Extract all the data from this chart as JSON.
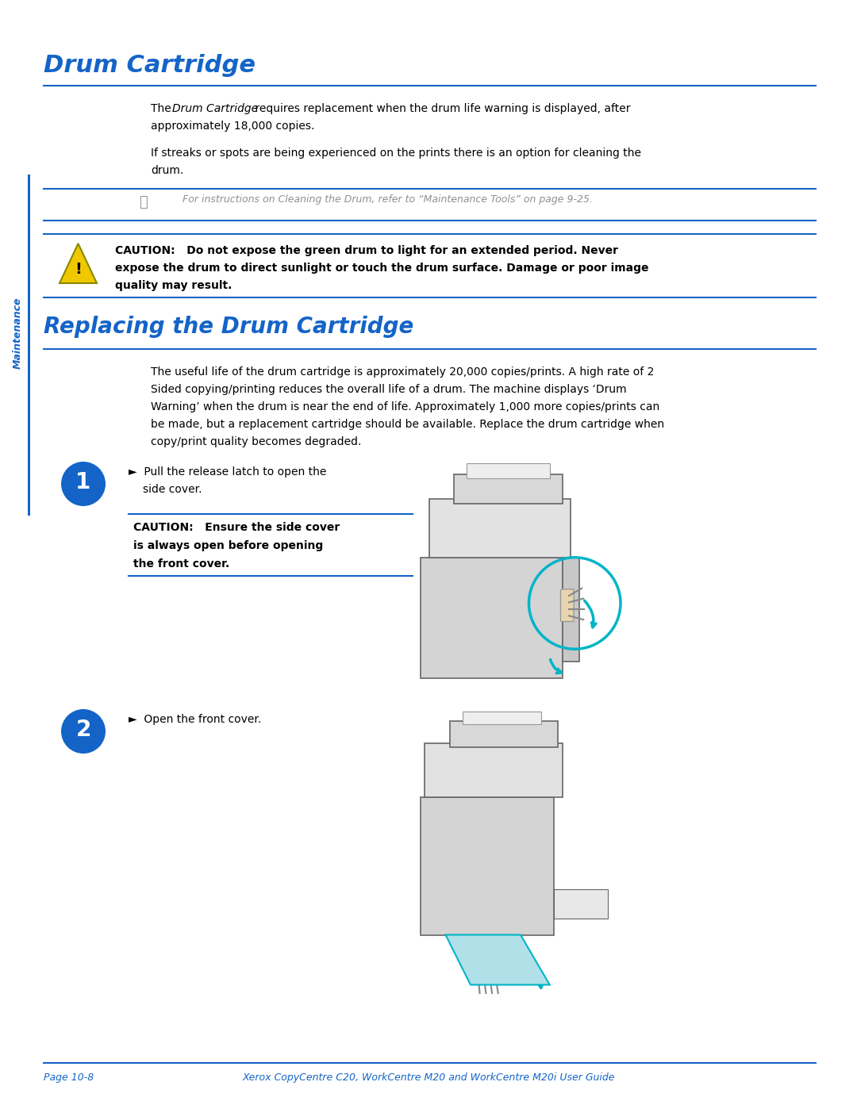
{
  "page_bg": "#ffffff",
  "blue_color": "#1464C8",
  "teal_color": "#00B4C8",
  "black_color": "#000000",
  "gray_text": "#909090",
  "yellow_caution": "#F0C800",
  "sidebar_text": "Maintenance",
  "h1_title": "Drum Cartridge",
  "h2_title": "Replacing the Drum Cartridge",
  "note_text": "For instructions on Cleaning the Drum, refer to “Maintenance Tools” on page 9-25.",
  "caution_text_bold": "CAUTION:   Do not expose the green drum to light for an extended period. Never\nexpose the drum to direct sunlight or touch the drum surface. Damage or poor image\nquality may result.",
  "body_text_3": "The useful life of the drum cartridge is approximately 20,000 copies/prints. A high rate of 2\nSided copying/printing reduces the overall life of a drum. The machine displays ‘Drum\nWarning’ when the drum is near the end of life. Approximately 1,000 more copies/prints can\nbe made, but a replacement cartridge should be available. Replace the drum cartridge when\ncopy/print quality becomes degraded.",
  "step1_caution": "CAUTION:   Ensure the side cover\nis always open before opening\nthe front cover.",
  "footer_left": "Page 10-8",
  "footer_right": "Xerox CopyCentre C20, WorkCentre M20 and WorkCentre M20i User Guide"
}
